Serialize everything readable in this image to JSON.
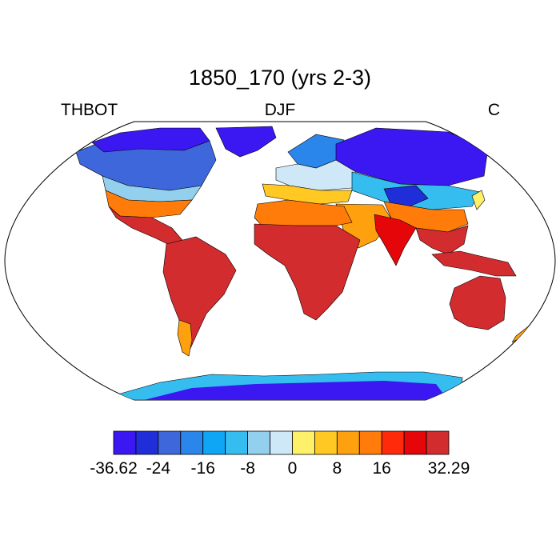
{
  "title": "1850_170 (yrs 2-3)",
  "left_label": "THBOT",
  "center_label": "DJF",
  "right_label": "C",
  "colorbar": {
    "colors": [
      "#3b17f2",
      "#1f2ed8",
      "#3f67dc",
      "#2a86ea",
      "#0fa6f5",
      "#35bdf0",
      "#93d0ee",
      "#cfe8f8",
      "#fff06a",
      "#ffc823",
      "#ffa10f",
      "#ff7c0a",
      "#ff2a0a",
      "#e5060a",
      "#d32c2e"
    ],
    "tick_labels": [
      "-36.62",
      "-24",
      "-16",
      "-8",
      "0",
      "8",
      "16",
      "32.29"
    ],
    "tick_boundaries": [
      0,
      2,
      4,
      6,
      8,
      10,
      12,
      15
    ]
  },
  "map": {
    "projection": "Robinson",
    "regions": [
      {
        "name": "arctic-canada",
        "color": "#3b17f2"
      },
      {
        "name": "canada",
        "color": "#3f67dc"
      },
      {
        "name": "usa-north",
        "color": "#93d0ee"
      },
      {
        "name": "usa-south",
        "color": "#ff7c0a"
      },
      {
        "name": "mexico",
        "color": "#d32c2e"
      },
      {
        "name": "greenland",
        "color": "#3b17f2"
      },
      {
        "name": "south-america",
        "color": "#d32c2e"
      },
      {
        "name": "patagonia",
        "color": "#ffa10f"
      },
      {
        "name": "scandinavia",
        "color": "#2a86ea"
      },
      {
        "name": "europe",
        "color": "#cfe8f8"
      },
      {
        "name": "europe-south",
        "color": "#ffc823"
      },
      {
        "name": "siberia",
        "color": "#3b17f2"
      },
      {
        "name": "central-asia",
        "color": "#35bdf0"
      },
      {
        "name": "tibet",
        "color": "#1f2ed8"
      },
      {
        "name": "china-south",
        "color": "#ff7c0a"
      },
      {
        "name": "middle-east",
        "color": "#ffa10f"
      },
      {
        "name": "india",
        "color": "#e5060a"
      },
      {
        "name": "north-africa",
        "color": "#ff7c0a"
      },
      {
        "name": "africa",
        "color": "#d32c2e"
      },
      {
        "name": "southeast-asia",
        "color": "#d32c2e"
      },
      {
        "name": "indonesia",
        "color": "#d32c2e"
      },
      {
        "name": "australia",
        "color": "#d32c2e"
      },
      {
        "name": "new-zealand",
        "color": "#ffa10f"
      },
      {
        "name": "japan",
        "color": "#fff06a"
      },
      {
        "name": "antarctica-coast",
        "color": "#35bdf0"
      },
      {
        "name": "antarctica-interior",
        "color": "#3b17f2"
      }
    ]
  }
}
